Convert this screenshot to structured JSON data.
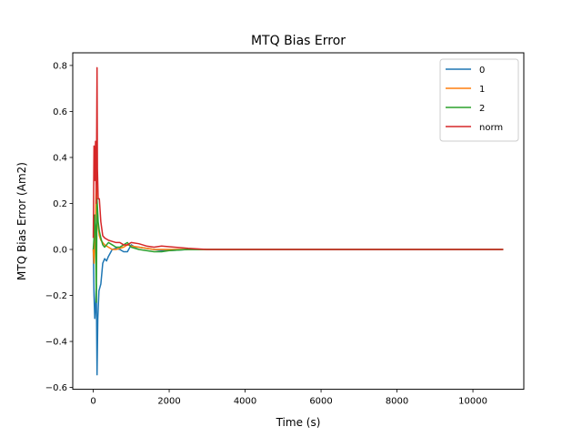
{
  "chart_data": {
    "type": "line",
    "title": "MTQ Bias Error",
    "xlabel": "Time (s)",
    "ylabel": "MTQ Bias Error (Am2)",
    "xlim": [
      -540,
      11340
    ],
    "ylim": [
      -0.608,
      0.855
    ],
    "xticks": [
      0,
      2000,
      4000,
      6000,
      8000,
      10000
    ],
    "yticks": [
      -0.6,
      -0.4,
      -0.2,
      0.0,
      0.2,
      0.4,
      0.6,
      0.8
    ],
    "xtick_labels": [
      "0",
      "2000",
      "4000",
      "6000",
      "8000",
      "10000"
    ],
    "ytick_labels": [
      "−0.6",
      "−0.4",
      "−0.2",
      "0.0",
      "0.2",
      "0.4",
      "0.6",
      "0.8"
    ],
    "grid": false,
    "legend_position": "top-right",
    "series": [
      {
        "name": "0",
        "color": "#1f77b4",
        "x": [
          0,
          20,
          40,
          60,
          80,
          100,
          120,
          150,
          200,
          250,
          300,
          350,
          400,
          500,
          600,
          700,
          800,
          900,
          1000,
          1100,
          1200,
          1400,
          1600,
          1800,
          2000,
          2500,
          3000,
          4000,
          6000,
          8000,
          10000,
          10800
        ],
        "y": [
          0.0,
          -0.2,
          -0.3,
          -0.25,
          -0.15,
          -0.545,
          -0.3,
          -0.18,
          -0.15,
          -0.06,
          -0.04,
          -0.05,
          -0.03,
          0.0,
          0.005,
          0.0,
          -0.01,
          -0.01,
          0.02,
          0.01,
          0.01,
          0.005,
          0.0,
          -0.005,
          -0.005,
          0.0,
          0.0,
          0.0,
          0.0,
          0.0,
          0.0,
          0.0
        ]
      },
      {
        "name": "1",
        "color": "#ff7f0e",
        "x": [
          0,
          20,
          40,
          60,
          80,
          100,
          130,
          160,
          200,
          300,
          400,
          500,
          600,
          700,
          800,
          900,
          1000,
          1200,
          1400,
          1600,
          1800,
          2000,
          2500,
          3000,
          4000,
          6000,
          8000,
          10000,
          10800
        ],
        "y": [
          0.0,
          -0.06,
          0.05,
          0.15,
          0.3,
          0.2,
          0.1,
          0.06,
          0.04,
          0.02,
          0.01,
          0.0,
          0.0,
          0.005,
          0.01,
          0.02,
          0.015,
          0.01,
          0.005,
          0.0,
          0.0,
          0.0,
          0.0,
          0.0,
          0.0,
          0.0,
          0.0,
          0.0,
          0.0
        ]
      },
      {
        "name": "2",
        "color": "#2ca02c",
        "x": [
          0,
          20,
          40,
          60,
          80,
          100,
          130,
          160,
          200,
          250,
          300,
          400,
          500,
          600,
          700,
          800,
          900,
          1000,
          1200,
          1400,
          1600,
          1800,
          2000,
          2500,
          3000,
          4000,
          6000,
          8000,
          10000,
          10800
        ],
        "y": [
          0.0,
          0.05,
          0.15,
          0.1,
          -0.23,
          0.22,
          0.12,
          0.08,
          0.05,
          0.02,
          0.01,
          0.03,
          0.02,
          0.01,
          0.01,
          0.02,
          0.03,
          0.01,
          0.0,
          -0.005,
          -0.01,
          -0.01,
          -0.005,
          0.0,
          0.0,
          0.0,
          0.0,
          0.0,
          0.0,
          0.0
        ]
      },
      {
        "name": "norm",
        "color": "#d62728",
        "x": [
          0,
          20,
          40,
          60,
          80,
          100,
          110,
          130,
          160,
          200,
          250,
          300,
          400,
          500,
          600,
          700,
          800,
          900,
          1000,
          1200,
          1400,
          1600,
          1800,
          2000,
          2500,
          3000,
          4000,
          6000,
          8000,
          10000,
          10800
        ],
        "y": [
          0.05,
          0.45,
          0.3,
          0.47,
          0.2,
          0.79,
          0.35,
          0.22,
          0.22,
          0.12,
          0.06,
          0.05,
          0.04,
          0.035,
          0.03,
          0.03,
          0.02,
          0.02,
          0.03,
          0.025,
          0.015,
          0.01,
          0.015,
          0.012,
          0.005,
          0.0,
          0.0,
          0.0,
          0.0,
          0.0,
          0.0
        ]
      }
    ]
  }
}
